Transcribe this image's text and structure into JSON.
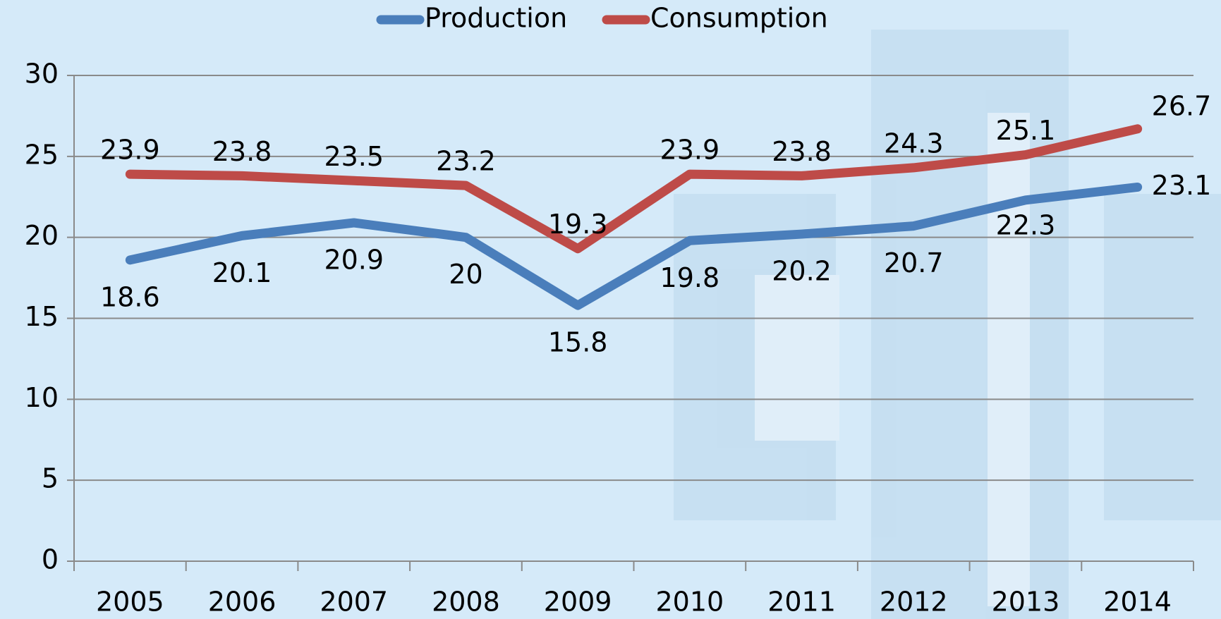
{
  "chart_data": {
    "type": "line",
    "categories": [
      "2005",
      "2006",
      "2007",
      "2008",
      "2009",
      "2010",
      "2011",
      "2012",
      "2013",
      "2014"
    ],
    "series": [
      {
        "name": "Production",
        "color": "#4a7ebb",
        "values": [
          18.6,
          20.1,
          20.9,
          20,
          15.8,
          19.8,
          20.2,
          20.7,
          22.3,
          23.1
        ]
      },
      {
        "name": "Consumption",
        "color": "#be4b48",
        "values": [
          23.9,
          23.8,
          23.5,
          23.2,
          19.3,
          23.9,
          23.8,
          24.3,
          25.1,
          26.7
        ]
      }
    ],
    "ylim": [
      0,
      30
    ],
    "yticks": [
      0,
      5,
      10,
      15,
      20,
      25,
      30
    ],
    "grid": true,
    "legend": "top"
  }
}
